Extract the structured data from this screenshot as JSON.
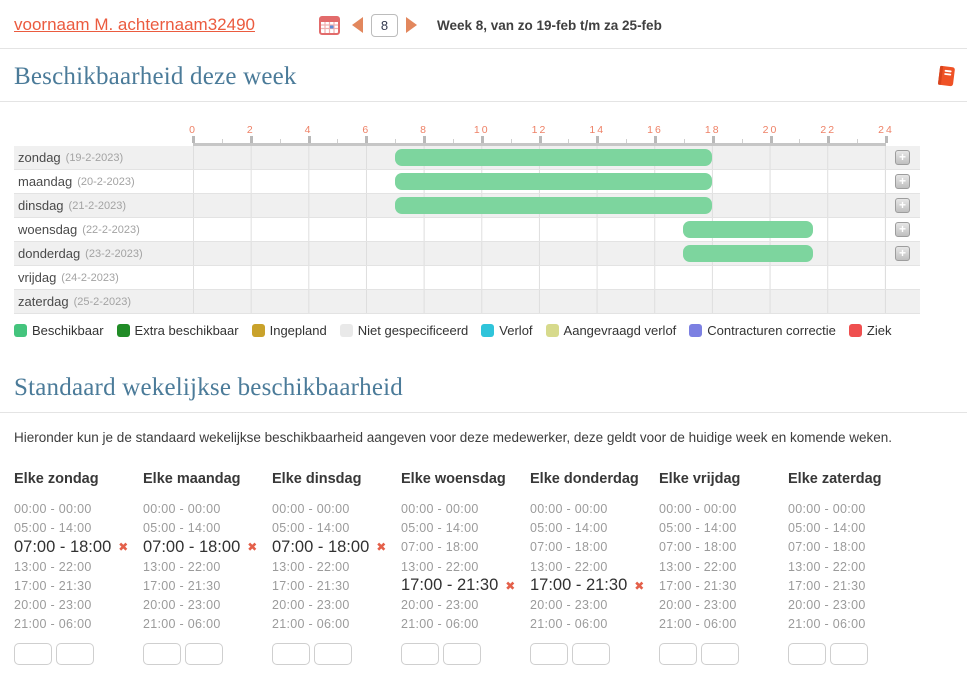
{
  "header": {
    "user_link": "voornaam M. achternaam32490",
    "week_input": "8",
    "week_label": "Week 8, van zo 19-feb t/m za 25-feb"
  },
  "availability": {
    "title": "Beschikbaarheid deze week",
    "axis_ticks": [
      "0",
      "2",
      "4",
      "6",
      "8",
      "10",
      "12",
      "14",
      "16",
      "18",
      "20",
      "22",
      "24"
    ],
    "bar_color": "#7dd59e",
    "rows": [
      {
        "day": "zondag",
        "date": "(19-2-2023)",
        "bar": {
          "start": 7,
          "end": 18
        },
        "add_button": true
      },
      {
        "day": "maandag",
        "date": "(20-2-2023)",
        "bar": {
          "start": 7,
          "end": 18
        },
        "add_button": true
      },
      {
        "day": "dinsdag",
        "date": "(21-2-2023)",
        "bar": {
          "start": 7,
          "end": 18
        },
        "add_button": true
      },
      {
        "day": "woensdag",
        "date": "(22-2-2023)",
        "bar": {
          "start": 17,
          "end": 21.5
        },
        "add_button": true
      },
      {
        "day": "donderdag",
        "date": "(23-2-2023)",
        "bar": {
          "start": 17,
          "end": 21.5
        },
        "add_button": true
      },
      {
        "day": "vrijdag",
        "date": "(24-2-2023)",
        "bar": null,
        "add_button": false
      },
      {
        "day": "zaterdag",
        "date": "(25-2-2023)",
        "bar": null,
        "add_button": false
      }
    ],
    "legend": [
      {
        "label": "Beschikbaar",
        "color": "#44c47d"
      },
      {
        "label": "Extra beschikbaar",
        "color": "#218c27"
      },
      {
        "label": "Ingepland",
        "color": "#c9a22b"
      },
      {
        "label": "Niet gespecificeerd",
        "color": "#e9e9e9"
      },
      {
        "label": "Verlof",
        "color": "#2fc4da"
      },
      {
        "label": "Aangevraagd verlof",
        "color": "#d7da8c"
      },
      {
        "label": "Contracturen correctie",
        "color": "#7c80e2"
      },
      {
        "label": "Ziek",
        "color": "#ef4f4f"
      }
    ]
  },
  "standard": {
    "title": "Standaard wekelijkse beschikbaarheid",
    "intro": "Hieronder kun je de standaard wekelijkse beschikbaarheid aangeven voor deze medewerker, deze geldt voor de huidige week en komende weken.",
    "slot_times": [
      "00:00 - 00:00",
      "05:00 - 14:00",
      "07:00 - 18:00",
      "13:00 - 22:00",
      "17:00 - 21:30",
      "20:00 - 23:00",
      "21:00 - 06:00"
    ],
    "columns": [
      {
        "title": "Elke zondag",
        "active_slot": "07:00 - 18:00"
      },
      {
        "title": "Elke maandag",
        "active_slot": "07:00 - 18:00"
      },
      {
        "title": "Elke dinsdag",
        "active_slot": "07:00 - 18:00"
      },
      {
        "title": "Elke woensdag",
        "active_slot": "17:00 - 21:30"
      },
      {
        "title": "Elke donderdag",
        "active_slot": "17:00 - 21:30"
      },
      {
        "title": "Elke vrijdag",
        "active_slot": null
      },
      {
        "title": "Elke zaterdag",
        "active_slot": null
      }
    ]
  },
  "icons": {
    "add_label": "+",
    "remove_glyph": "✖"
  }
}
